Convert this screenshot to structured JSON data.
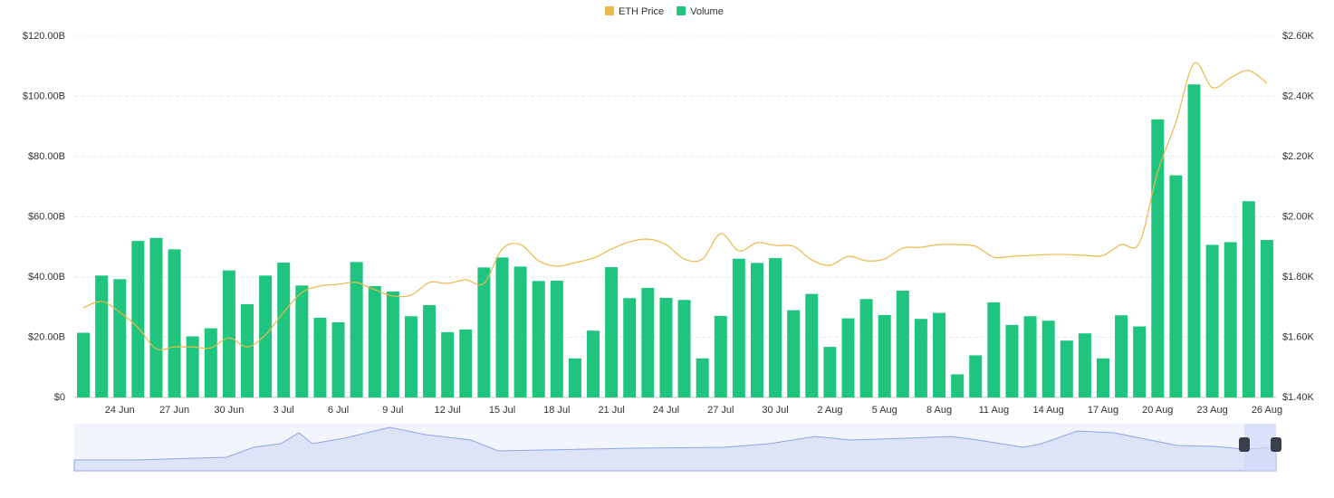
{
  "chart_data": {
    "type": "bar",
    "categories": [
      null,
      null,
      "24 Jun",
      null,
      null,
      "27 Jun",
      null,
      null,
      "30 Jun",
      null,
      null,
      "3 Jul",
      null,
      null,
      "6 Jul",
      null,
      null,
      "9 Jul",
      null,
      null,
      "12 Jul",
      null,
      null,
      "15 Jul",
      null,
      null,
      "18 Jul",
      null,
      null,
      "21 Jul",
      null,
      null,
      "24 Jul",
      null,
      null,
      "27 Jul",
      null,
      null,
      "30 Jul",
      null,
      null,
      "2 Aug",
      null,
      null,
      "5 Aug",
      null,
      null,
      "8 Aug",
      null,
      null,
      "11 Aug",
      null,
      null,
      "14 Aug",
      null,
      null,
      "17 Aug",
      null,
      null,
      "20 Aug",
      null,
      null,
      "23 Aug",
      null,
      null,
      "26 Aug"
    ],
    "series": [
      {
        "name": "ETH Price",
        "color": "#e9b949",
        "type": "line",
        "axis": "y2",
        "values": [
          1698,
          1719,
          1683,
          1632,
          1562,
          1568,
          1568,
          1565,
          1598,
          1568,
          1608,
          1683,
          1749,
          1770,
          1776,
          1782,
          1758,
          1737,
          1740,
          1782,
          1779,
          1791,
          1779,
          1893,
          1908,
          1854,
          1836,
          1848,
          1863,
          1893,
          1917,
          1926,
          1908,
          1860,
          1860,
          1944,
          1887,
          1914,
          1905,
          1902,
          1857,
          1839,
          1869,
          1854,
          1860,
          1896,
          1899,
          1908,
          1908,
          1902,
          1866,
          1869,
          1872,
          1875,
          1875,
          1872,
          1872,
          1908,
          1914,
          2149,
          2314,
          2510,
          2429,
          2462,
          2486,
          2444
        ]
      },
      {
        "name": "Volume",
        "color": "#1fc47f",
        "type": "bar",
        "values": [
          21.5,
          40.5,
          39.3,
          52,
          53,
          49.2,
          20.3,
          23,
          42.2,
          31,
          40.5,
          44.8,
          37.2,
          26.5,
          25,
          45,
          37,
          35.2,
          27,
          30.7,
          21.7,
          22.6,
          43.2,
          46.5,
          43.5,
          38.7,
          38.8,
          13,
          22.2,
          43.3,
          33,
          36.4,
          33.1,
          32.4,
          13,
          27.1,
          46.1,
          44.7,
          46.3,
          29,
          34.4,
          16.8,
          26.3,
          32.7,
          27.4,
          35.5,
          26.1,
          28.1,
          7.7,
          14,
          31.6,
          24.1,
          27,
          25.5,
          18.9,
          21.3,
          13,
          27.3,
          23.6,
          92.4,
          73.8,
          104,
          50.7,
          51.6,
          65.2,
          52.3
        ]
      }
    ],
    "ylim": [
      0,
      120
    ],
    "yticks": [
      {
        "value": 0,
        "label": "$0"
      },
      {
        "value": 20,
        "label": "$20.00B"
      },
      {
        "value": 40,
        "label": "$40.00B"
      },
      {
        "value": 60,
        "label": "$60.00B"
      },
      {
        "value": 80,
        "label": "$80.00B"
      },
      {
        "value": 100,
        "label": "$100.00B"
      },
      {
        "value": 120,
        "label": "$120.00B"
      }
    ],
    "y2lim": [
      1400,
      2600
    ],
    "y2ticks": [
      {
        "value": 1400,
        "label": "$1.40K"
      },
      {
        "value": 1600,
        "label": "$1.60K"
      },
      {
        "value": 1800,
        "label": "$1.80K"
      },
      {
        "value": 2000,
        "label": "$2.00K"
      },
      {
        "value": 2200,
        "label": "$2.20K"
      },
      {
        "value": 2400,
        "label": "$2.40K"
      },
      {
        "value": 2600,
        "label": "$2.60K"
      }
    ],
    "grid": true,
    "legend": "top"
  }
}
